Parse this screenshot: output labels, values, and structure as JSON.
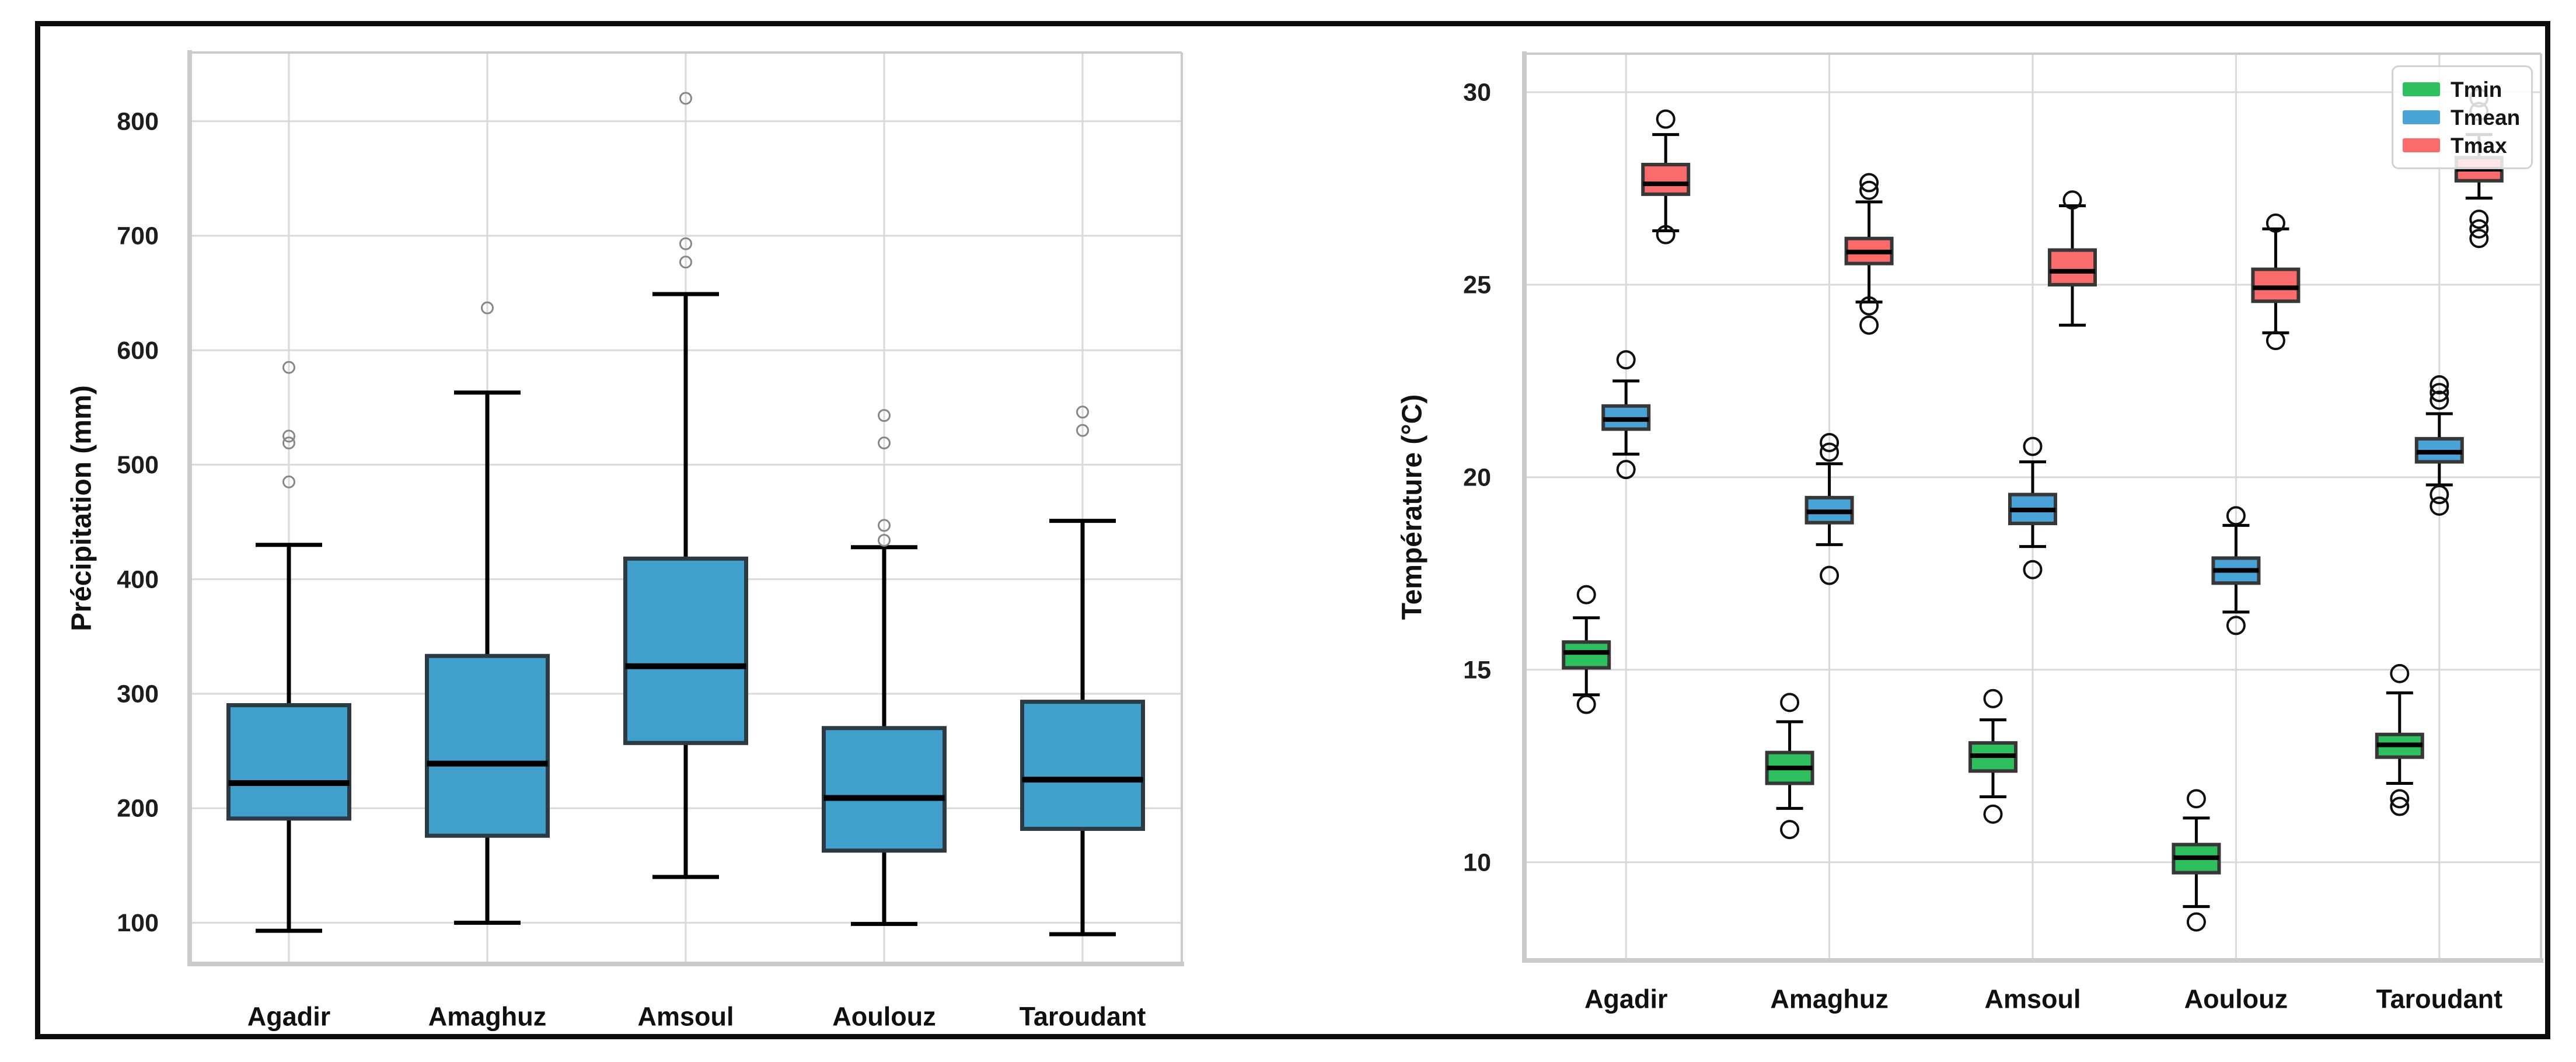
{
  "figure": {
    "background": "#ffffff",
    "frame_color": "#0c0c0c",
    "grid_color": "#d9d9d9",
    "spine_color": "#cbcbcb",
    "tick_color": "#1d1d1d"
  },
  "legend": {
    "position": "upper right",
    "entries": [
      "Tmin",
      "Tmean",
      "Tmax"
    ]
  },
  "chart_data": [
    {
      "type": "boxplot",
      "title": "",
      "xlabel": "",
      "ylabel": "Précipitation (mm)",
      "categories": [
        "Agadir",
        "Amaghuz",
        "Amsoul",
        "Aoulouz",
        "Taroudant"
      ],
      "yticks": [
        100,
        200,
        300,
        400,
        500,
        600,
        700,
        800
      ],
      "ylim": [
        64,
        860
      ],
      "grid": true,
      "series": [
        {
          "name": "Précipitation",
          "color": "#419fcb",
          "edge_color": "#2c3a44",
          "stats": [
            {
              "whislo": 93,
              "q1": 191,
              "med": 222,
              "q3": 290,
              "whishi": 430,
              "outliers": [
                485,
                519,
                525,
                585
              ]
            },
            {
              "whislo": 100,
              "q1": 176,
              "med": 239,
              "q3": 333,
              "whishi": 563,
              "outliers": [
                637
              ]
            },
            {
              "whislo": 140,
              "q1": 257,
              "med": 324,
              "q3": 418,
              "whishi": 649,
              "outliers": [
                677,
                693,
                820
              ]
            },
            {
              "whislo": 99,
              "q1": 163,
              "med": 209,
              "q3": 270,
              "whishi": 428,
              "outliers": [
                434,
                447,
                519,
                543
              ]
            },
            {
              "whislo": 90,
              "q1": 182,
              "med": 225,
              "q3": 293,
              "whishi": 451,
              "outliers": [
                530,
                546
              ]
            }
          ]
        }
      ]
    },
    {
      "type": "boxplot",
      "title": "",
      "xlabel": "",
      "ylabel": "Température (°C)",
      "categories": [
        "Agadir",
        "Amaghuz",
        "Amsoul",
        "Aoulouz",
        "Taroudant"
      ],
      "yticks": [
        10,
        15,
        20,
        25,
        30
      ],
      "ylim": [
        7.45,
        31.0
      ],
      "grid": true,
      "legend_position": "upper right",
      "series": [
        {
          "name": "Tmin",
          "color": "#2ebf5e",
          "edge_color": "#373737",
          "stats": [
            {
              "whislo": 14.35,
              "q1": 15.05,
              "med": 15.45,
              "q3": 15.72,
              "whishi": 16.35,
              "outliers": [
                14.1,
                16.95
              ]
            },
            {
              "whislo": 11.4,
              "q1": 12.05,
              "med": 12.45,
              "q3": 12.85,
              "whishi": 13.65,
              "outliers": [
                10.85,
                14.15
              ]
            },
            {
              "whislo": 11.7,
              "q1": 12.37,
              "med": 12.77,
              "q3": 13.1,
              "whishi": 13.7,
              "outliers": [
                11.25,
                14.25
              ]
            },
            {
              "whislo": 8.85,
              "q1": 9.73,
              "med": 10.12,
              "q3": 10.46,
              "whishi": 11.15,
              "outliers": [
                8.45,
                11.65
              ]
            },
            {
              "whislo": 12.05,
              "q1": 12.73,
              "med": 13.05,
              "q3": 13.32,
              "whishi": 14.4,
              "outliers": [
                11.45,
                11.65,
                14.9
              ]
            }
          ]
        },
        {
          "name": "Tmean",
          "color": "#4aa3d6",
          "edge_color": "#373737",
          "stats": [
            {
              "whislo": 20.6,
              "q1": 21.25,
              "med": 21.5,
              "q3": 21.85,
              "whishi": 22.5,
              "outliers": [
                20.2,
                23.05
              ]
            },
            {
              "whislo": 18.25,
              "q1": 18.82,
              "med": 19.1,
              "q3": 19.47,
              "whishi": 20.35,
              "outliers": [
                17.45,
                20.65,
                20.9
              ]
            },
            {
              "whislo": 18.2,
              "q1": 18.8,
              "med": 19.15,
              "q3": 19.55,
              "whishi": 20.4,
              "outliers": [
                17.6,
                20.8
              ]
            },
            {
              "whislo": 16.5,
              "q1": 17.25,
              "med": 17.58,
              "q3": 17.9,
              "whishi": 18.75,
              "outliers": [
                16.15,
                19.0
              ]
            },
            {
              "whislo": 19.8,
              "q1": 20.4,
              "med": 20.65,
              "q3": 21.0,
              "whishi": 21.65,
              "outliers": [
                19.25,
                19.55,
                22.0,
                22.2,
                22.4
              ]
            }
          ]
        },
        {
          "name": "Tmax",
          "color": "#fb6b6b",
          "edge_color": "#373737",
          "stats": [
            {
              "whislo": 26.4,
              "q1": 27.35,
              "med": 27.62,
              "q3": 28.12,
              "whishi": 28.9,
              "outliers": [
                26.3,
                29.3
              ]
            },
            {
              "whislo": 24.55,
              "q1": 25.55,
              "med": 25.85,
              "q3": 26.2,
              "whishi": 27.15,
              "outliers": [
                23.95,
                24.45,
                27.45,
                27.65
              ]
            },
            {
              "whislo": 23.95,
              "q1": 25.0,
              "med": 25.35,
              "q3": 25.9,
              "whishi": 27.05,
              "outliers": [
                27.2
              ]
            },
            {
              "whislo": 23.75,
              "q1": 24.57,
              "med": 24.92,
              "q3": 25.4,
              "whishi": 26.45,
              "outliers": [
                23.55,
                26.6
              ]
            },
            {
              "whislo": 27.25,
              "q1": 27.7,
              "med": 28.0,
              "q3": 28.3,
              "whishi": 28.9,
              "outliers": [
                26.2,
                26.45,
                26.7,
                29.5,
                29.85
              ]
            }
          ]
        }
      ]
    }
  ]
}
